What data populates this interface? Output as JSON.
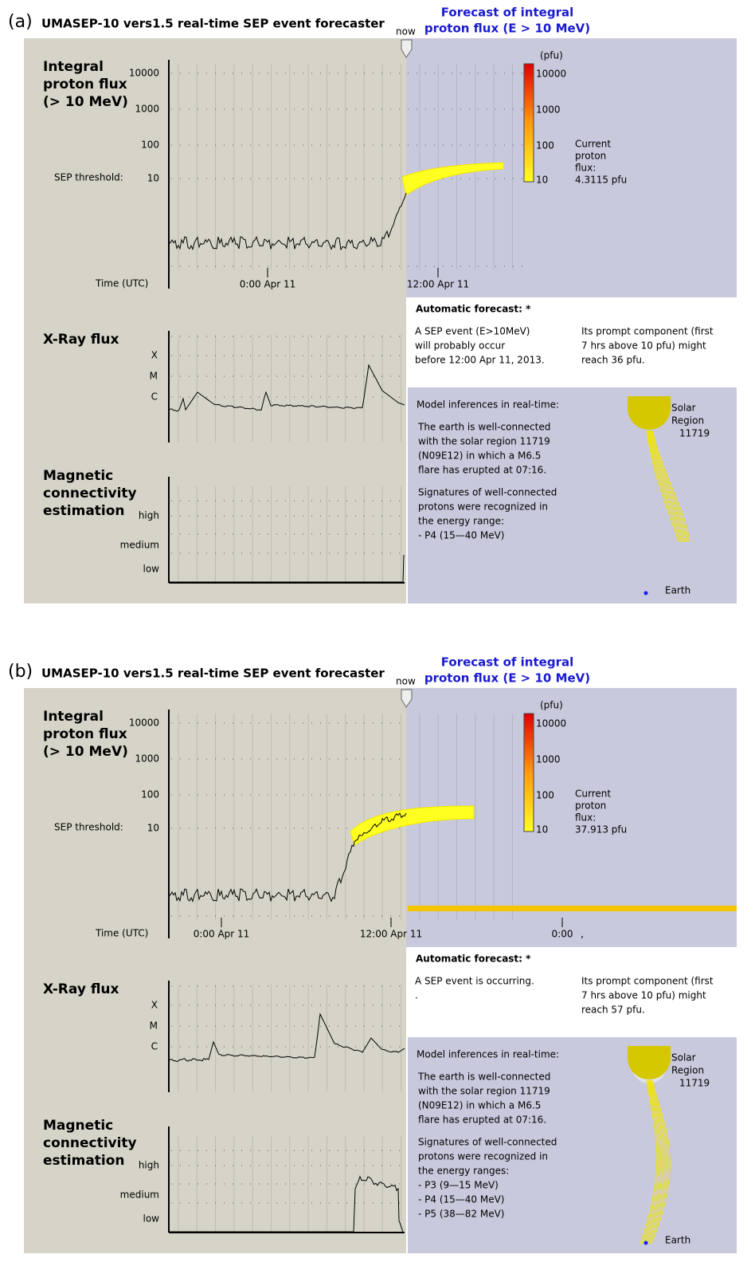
{
  "panels": [
    {
      "label": "(a)",
      "title": "UMASEP-10 vers1.5  real-time SEP event forecaster",
      "now": "now",
      "forecast_title": [
        "Forecast of integral",
        "proton flux (E > 10 MeV)"
      ],
      "flux_label": [
        "Integral",
        "proton flux",
        "(> 10 MeV)"
      ],
      "flux_ticks": [
        "10000",
        "1000",
        "100",
        "10"
      ],
      "threshold_label": "SEP threshold:",
      "time_label": "Time (UTC)",
      "time_ticks": [
        "0:00  Apr 11",
        "12:00 Apr 11"
      ],
      "colorbar_unit": "(pfu)",
      "colorbar_ticks": [
        "10000",
        "1000",
        "100",
        "10"
      ],
      "current_flux": [
        "Current",
        "proton",
        "flux:",
        "4.3115 pfu"
      ],
      "forecast_heading": "Automatic forecast: *",
      "forecast_left": [
        "A SEP event (E>10MeV)",
        "will probably occur",
        "before 12:00 Apr 11, 2013."
      ],
      "forecast_right": [
        "Its prompt component (first",
        "7 hrs above 10 pfu) might",
        "reach 36 pfu."
      ],
      "xray_label": "X-Ray flux",
      "xray_ticks": [
        "X",
        "M",
        "C"
      ],
      "model_heading": "Model inferences in real-time:",
      "model_paragraph1": [
        "The earth is well-connected",
        "with the solar region 11719",
        "(N09E12) in which a M6.5",
        "flare has erupted at 07:16."
      ],
      "model_paragraph2": [
        "Signatures of well-connected",
        "protons were recognized in",
        "the energy range:",
        "- P4 (15—40 MeV)"
      ],
      "region_label": [
        "Solar",
        "Region",
        "11719"
      ],
      "earth_label": "Earth",
      "magnetic_label": [
        "Magnetic",
        "connectivity",
        "estimation"
      ],
      "magnetic_ticks": [
        "high",
        "medium",
        "low"
      ]
    },
    {
      "label": "(b)",
      "title": "UMASEP-10 vers1.5  real-time SEP event forecaster",
      "now": "now",
      "forecast_title": [
        "Forecast of integral",
        "proton flux (E > 10 MeV)"
      ],
      "flux_label": [
        "Integral",
        "proton flux",
        "(> 10 MeV)"
      ],
      "flux_ticks": [
        "10000",
        "1000",
        "100",
        "10"
      ],
      "threshold_label": "SEP threshold:",
      "time_label": "Time (UTC)",
      "time_ticks": [
        "0:00  Apr 11",
        "12:00 Apr 11",
        "0:00",
        ","
      ],
      "colorbar_unit": "(pfu)",
      "colorbar_ticks": [
        "10000",
        "1000",
        "100",
        "10"
      ],
      "current_flux": [
        "Current",
        "proton",
        "flux:",
        "37.913 pfu"
      ],
      "forecast_heading": "Automatic forecast: *",
      "forecast_left": [
        "A SEP event is occurring.",
        "."
      ],
      "forecast_right": [
        "Its prompt component (first",
        "7 hrs above 10 pfu) might",
        "reach 57 pfu."
      ],
      "xray_label": "X-Ray flux",
      "xray_ticks": [
        "X",
        "M",
        "C"
      ],
      "model_heading": "Model inferences in real-time:",
      "model_paragraph1": [
        "The earth is well-connected",
        "with the solar region 11719",
        "(N09E12) in which a M6.5",
        "flare has erupted at 07:16."
      ],
      "model_paragraph2": [
        "Signatures of well-connected",
        "protons were recognized in",
        "the energy ranges:",
        "- P3 (9—15 MeV)",
        "- P4 (15—40 MeV)",
        "- P5 (38—82 MeV)"
      ],
      "region_label": [
        "Solar",
        "Region",
        "11719"
      ],
      "earth_label": "Earth",
      "magnetic_label": [
        "Magnetic",
        "connectivity",
        "estimation"
      ],
      "magnetic_ticks": [
        "high",
        "medium",
        "low"
      ]
    }
  ]
}
